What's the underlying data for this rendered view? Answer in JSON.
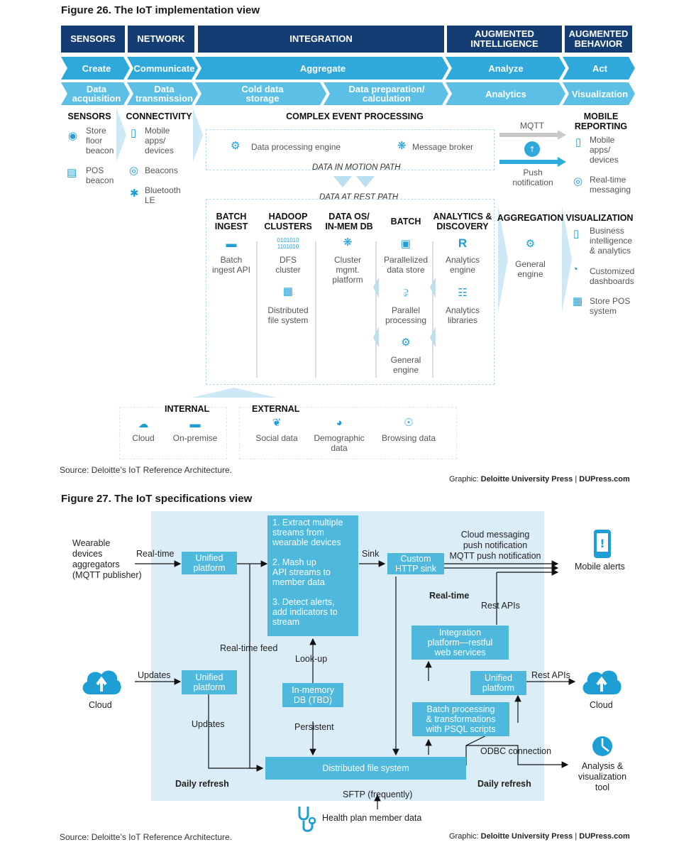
{
  "fig26": {
    "title": "Figure 26. The IoT implementation view",
    "headers": [
      "SENSORS",
      "NETWORK",
      "INTEGRATION",
      "AUGMENTED\nINTELLIGENCE",
      "AUGMENTED\nBEHAVIOR"
    ],
    "row2": [
      "Create",
      "Communicate",
      "Aggregate",
      "Analyze",
      "Act"
    ],
    "row3": [
      "Data\nacquisition",
      "Data\ntransmission",
      "Cold data\nstorage",
      "Data preparation/\ncalculation",
      "Analytics",
      "Visualization"
    ],
    "sensors": {
      "title": "SENSORS",
      "items": [
        "Store\nfloor\nbeacon",
        "POS\nbeacon"
      ]
    },
    "connectivity": {
      "title": "CONNECTIVITY",
      "items": [
        "Mobile\napps/\ndevices",
        "Beacons",
        "Bluetooth\nLE"
      ]
    },
    "cep": {
      "title": "COMPLEX EVENT PROCESSING",
      "engine": "Data processing engine",
      "broker": "Message broker",
      "motion": "DATA IN MOTION PATH",
      "rest": "DATA AT REST PATH"
    },
    "mqtt": "MQTT",
    "push": "Push\nnotification",
    "mobile_reporting": {
      "title": "MOBILE\nREPORTING",
      "items": [
        "Mobile\napps/\ndevices",
        "Real-time\nmessaging"
      ]
    },
    "columns": [
      {
        "title": "BATCH\nINGEST",
        "items": [
          "Batch\ningest API"
        ]
      },
      {
        "title": "HADOOP\nCLUSTERS",
        "items": [
          "DFS\ncluster",
          "Distributed\nfile system"
        ]
      },
      {
        "title": "DATA OS/\nIN-MEM DB",
        "items": [
          "Cluster\nmgmt.\nplatform"
        ]
      },
      {
        "title": "BATCH",
        "items": [
          "Parallelized\ndata store",
          "Parallel\nprocessing",
          "General\nengine"
        ]
      },
      {
        "title": "ANALYTICS &\nDISCOVERY",
        "items": [
          "Analytics\nengine",
          "Analytics\nlibraries"
        ]
      }
    ],
    "aggregation": {
      "title": "AGGREGATION",
      "items": [
        "General\nengine"
      ]
    },
    "visualization": {
      "title": "VISUALIZATION",
      "items": [
        "Business\nintelligence\n& analytics",
        "Customized\ndashboards",
        "Store POS\nsystem"
      ]
    },
    "internal": {
      "title": "INTERNAL",
      "items": [
        "Cloud",
        "On-premise"
      ]
    },
    "external": {
      "title": "EXTERNAL",
      "items": [
        "Social data",
        "Demographic\ndata",
        "Browsing data"
      ]
    },
    "source": "Source: Deloitte’s IoT Reference Architecture.",
    "graphic_pre": "Graphic: ",
    "graphic_org": "Deloitte University Press",
    "graphic_sep": "|",
    "graphic_site": "DUPress.com"
  },
  "fig27": {
    "title": "Figure 27. The IoT specifications view",
    "wearable": "Wearable\ndevices\naggregators\n(MQTT publisher)",
    "realtime": "Real-time",
    "unified": "Unified\nplatform",
    "steps": "1. Extract multiple\nstreams from\nwearable devices\n\n2. Mash up\nAPI streams to\nmember data\n\n3. Detect alerts,\nadd indicators to\nstream",
    "sink": "Sink",
    "custom_sink": "Custom\nHTTP sink",
    "cloud_msg": "Cloud messaging\npush notification\nMQTT push notification",
    "mobile_alerts": "Mobile alerts",
    "realtime_bold": "Real-time",
    "rest_apis": "Rest APIs",
    "realtime_feed": "Real-time feed",
    "lookup": "Look-up",
    "integration": "Integration\nplatform—restful\nweb services",
    "updates": "Updates",
    "cloud": "Cloud",
    "inmem": "In-memory\nDB (TBD)",
    "persistent": "Persistent",
    "batch": "Batch processing\n& transformations\nwith PSQL scripts",
    "odbc": "ODBC connection",
    "dfs": "Distributed file system",
    "daily": "Daily refresh",
    "analysis": "Analysis &\nvisualization\ntool",
    "sftp": "SFTP (frequently)",
    "health": "Health plan member data",
    "source": "Source: Deloitte’s IoT Reference Architecture."
  },
  "colors": {
    "navy": "#143d73",
    "chev1": "#2fa9dc",
    "chev2": "#5cc0e6",
    "panel": "#dbeef7",
    "box": "#4eb8dd",
    "icon": "#1d9fd6"
  }
}
